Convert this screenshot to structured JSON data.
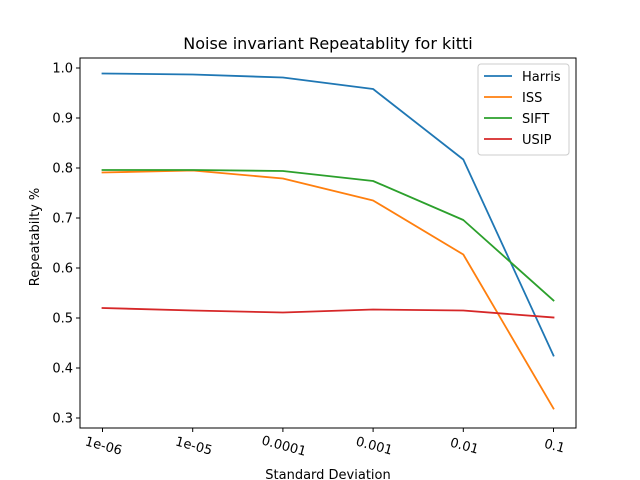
{
  "chart_data": {
    "type": "line",
    "title": "Noise invariant Repeatablity for kitti",
    "xlabel": "Standard Deviation",
    "ylabel": "Repeatabilty %",
    "categories": [
      "1e-06",
      "1e-05",
      "0.0001",
      "0.001",
      "0.01",
      "0.1"
    ],
    "ylim": [
      0.28,
      1.02
    ],
    "yticks": [
      "0.3",
      "0.4",
      "0.5",
      "0.6",
      "0.7",
      "0.8",
      "0.9",
      "1.0"
    ],
    "grid": false,
    "legend_position": "top-right",
    "series": [
      {
        "name": "Harris",
        "color": "#1f77b4",
        "values": [
          0.989,
          0.987,
          0.981,
          0.958,
          0.817,
          0.425
        ]
      },
      {
        "name": "ISS",
        "color": "#ff7f0e",
        "values": [
          0.791,
          0.795,
          0.779,
          0.735,
          0.627,
          0.319
        ]
      },
      {
        "name": "SIFT",
        "color": "#2ca02c",
        "values": [
          0.796,
          0.796,
          0.794,
          0.774,
          0.696,
          0.535
        ]
      },
      {
        "name": "USIP",
        "color": "#d62728",
        "values": [
          0.52,
          0.515,
          0.511,
          0.517,
          0.515,
          0.501
        ]
      }
    ]
  }
}
